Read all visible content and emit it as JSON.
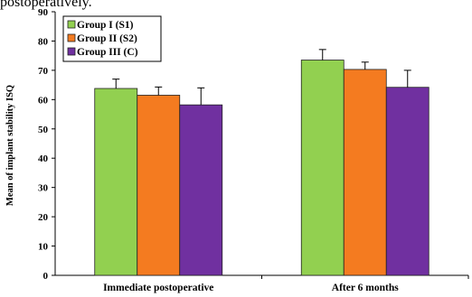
{
  "top_text_fragment": "postoperatively.",
  "chart_data": {
    "type": "bar",
    "title": "",
    "xlabel": "",
    "ylabel": "Mean of implant stability ISQ",
    "ylim": [
      0,
      90
    ],
    "yticks": [
      0,
      10,
      20,
      30,
      40,
      50,
      60,
      70,
      80,
      90
    ],
    "categories": [
      "Immediate postoperative",
      "After 6 months"
    ],
    "error_bars": true,
    "grid": false,
    "legend_position": "top-left",
    "series": [
      {
        "name": "Group I (S1)",
        "color": "#92d050",
        "values": [
          63.8,
          73.5
        ],
        "errors": [
          3.2,
          3.6
        ]
      },
      {
        "name": "Group II (S2)",
        "color": "#f47b20",
        "values": [
          61.5,
          70.3
        ],
        "errors": [
          2.8,
          2.5
        ]
      },
      {
        "name": "Group III (C)",
        "color": "#7030a0",
        "values": [
          58.2,
          64.2
        ],
        "errors": [
          5.8,
          5.8
        ]
      }
    ]
  }
}
